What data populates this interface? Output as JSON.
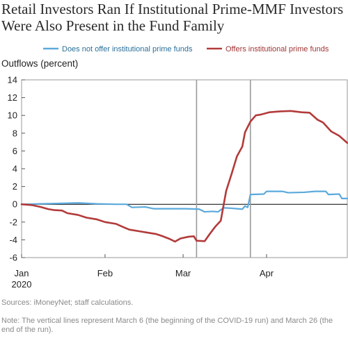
{
  "chart_data": {
    "type": "line",
    "title": "Retail Investors Ran If Institutional Prime-MMF Investors Were Also Present in the Fund Family",
    "ylabel": "Outflows (percent)",
    "xlabel": "",
    "ylim": [
      -6,
      14
    ],
    "yticks": [
      "14",
      "12",
      "10",
      "8",
      "6",
      "4",
      "2",
      "0",
      "-2",
      "-4",
      "-6"
    ],
    "xticks": [
      {
        "label": "Jan",
        "sublabel": "2020",
        "date": "2020-01-01"
      },
      {
        "label": "Feb",
        "sublabel": "",
        "date": "2020-02-01"
      },
      {
        "label": "Mar",
        "sublabel": "",
        "date": "2020-03-01"
      },
      {
        "label": "Apr",
        "sublabel": "",
        "date": "2020-04-01"
      }
    ],
    "xrange": [
      "2020-01-01",
      "2020-05-01"
    ],
    "vertical_lines": [
      "2020-03-06",
      "2020-03-26"
    ],
    "grid": false,
    "legend_position": "top",
    "series": [
      {
        "name": "Does not offer institutional prime funds",
        "color": "#5aa9dc",
        "points": [
          [
            "2020-01-01",
            0.0
          ],
          [
            "2020-01-08",
            0.05
          ],
          [
            "2020-01-15",
            0.1
          ],
          [
            "2020-01-22",
            0.15
          ],
          [
            "2020-01-29",
            0.05
          ],
          [
            "2020-02-05",
            0.0
          ],
          [
            "2020-02-09",
            0.0
          ],
          [
            "2020-02-11",
            -0.35
          ],
          [
            "2020-02-16",
            -0.3
          ],
          [
            "2020-02-19",
            -0.5
          ],
          [
            "2020-02-24",
            -0.5
          ],
          [
            "2020-03-02",
            -0.5
          ],
          [
            "2020-03-07",
            -0.55
          ],
          [
            "2020-03-09",
            -0.85
          ],
          [
            "2020-03-12",
            -0.8
          ],
          [
            "2020-03-14",
            -0.85
          ],
          [
            "2020-03-16",
            -0.4
          ],
          [
            "2020-03-19",
            -0.45
          ],
          [
            "2020-03-21",
            -0.5
          ],
          [
            "2020-03-23",
            -0.55
          ],
          [
            "2020-03-24",
            -0.2
          ],
          [
            "2020-03-25",
            -0.35
          ],
          [
            "2020-03-26",
            1.1
          ],
          [
            "2020-03-31",
            1.15
          ],
          [
            "2020-04-01",
            1.45
          ],
          [
            "2020-04-07",
            1.45
          ],
          [
            "2020-04-09",
            1.3
          ],
          [
            "2020-04-15",
            1.35
          ],
          [
            "2020-04-19",
            1.45
          ],
          [
            "2020-04-23",
            1.45
          ],
          [
            "2020-04-24",
            1.1
          ],
          [
            "2020-04-28",
            1.15
          ],
          [
            "2020-04-29",
            0.65
          ],
          [
            "2020-05-01",
            0.65
          ]
        ]
      },
      {
        "name": "Offers institutional prime funds",
        "color": "#b33a3a",
        "points": [
          [
            "2020-01-01",
            0.0
          ],
          [
            "2020-01-05",
            -0.1
          ],
          [
            "2020-01-08",
            -0.3
          ],
          [
            "2020-01-11",
            -0.55
          ],
          [
            "2020-01-13",
            -0.65
          ],
          [
            "2020-01-16",
            -0.7
          ],
          [
            "2020-01-18",
            -1.0
          ],
          [
            "2020-01-22",
            -1.2
          ],
          [
            "2020-01-25",
            -1.5
          ],
          [
            "2020-01-29",
            -1.7
          ],
          [
            "2020-02-01",
            -2.0
          ],
          [
            "2020-02-05",
            -2.2
          ],
          [
            "2020-02-08",
            -2.6
          ],
          [
            "2020-02-10",
            -2.85
          ],
          [
            "2020-02-14",
            -3.05
          ],
          [
            "2020-02-17",
            -3.2
          ],
          [
            "2020-02-20",
            -3.35
          ],
          [
            "2020-02-22",
            -3.55
          ],
          [
            "2020-02-25",
            -3.9
          ],
          [
            "2020-02-27",
            -4.2
          ],
          [
            "2020-02-29",
            -3.85
          ],
          [
            "2020-03-03",
            -3.65
          ],
          [
            "2020-03-05",
            -3.6
          ],
          [
            "2020-03-06",
            -4.1
          ],
          [
            "2020-03-09",
            -4.15
          ],
          [
            "2020-03-11",
            -3.3
          ],
          [
            "2020-03-13",
            -2.5
          ],
          [
            "2020-03-15",
            -1.85
          ],
          [
            "2020-03-17",
            1.5
          ],
          [
            "2020-03-19",
            3.4
          ],
          [
            "2020-03-21",
            5.4
          ],
          [
            "2020-03-23",
            6.5
          ],
          [
            "2020-03-24",
            8.1
          ],
          [
            "2020-03-26",
            9.3
          ],
          [
            "2020-03-28",
            10.0
          ],
          [
            "2020-03-30",
            10.1
          ],
          [
            "2020-04-02",
            10.35
          ],
          [
            "2020-04-06",
            10.45
          ],
          [
            "2020-04-10",
            10.5
          ],
          [
            "2020-04-14",
            10.35
          ],
          [
            "2020-04-17",
            10.3
          ],
          [
            "2020-04-20",
            9.5
          ],
          [
            "2020-04-22",
            9.2
          ],
          [
            "2020-04-25",
            8.2
          ],
          [
            "2020-04-28",
            7.7
          ],
          [
            "2020-05-01",
            6.9
          ]
        ]
      }
    ]
  },
  "footer": {
    "sources": "Sources: iMoneyNet; staff calculations.",
    "note": "Note: The vertical lines represent March 6 (the beginning of the COVID-19 run) and March 26 (the end of the run)."
  }
}
